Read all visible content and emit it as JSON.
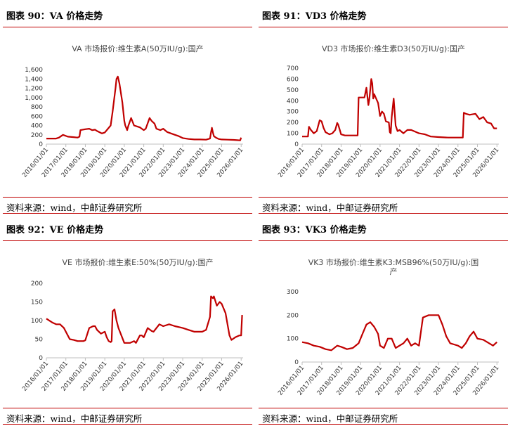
{
  "panels": [
    {
      "figure_label": "图表 90：VA 价格走势",
      "source": "资料来源：wind，中邮证券研究所",
      "chart_data": {
        "type": "line",
        "title": "VA 市场报价:维生素A(50万IU/g):国产",
        "ylim": [
          0,
          1600
        ],
        "yticks": [
          "0",
          "200",
          "400",
          "600",
          "800",
          "1,000",
          "1,200",
          "1,400",
          "1,600"
        ],
        "yticks_values": [
          0,
          200,
          400,
          600,
          800,
          1000,
          1200,
          1400,
          1600
        ],
        "xticks": [
          "2016/01/01",
          "2017/01/01",
          "2018/01/01",
          "2019/01/01",
          "2020/01/01",
          "2021/01/01",
          "2022/01/01",
          "2023/01/01",
          "2024/01/01",
          "2025/01/01",
          "2026/01/01"
        ],
        "xlim": [
          2016.0,
          2026.1
        ],
        "series": [
          {
            "x": [
              2016.0,
              2016.5,
              2016.65,
              2016.85,
              2017.1,
              2017.4,
              2017.6,
              2017.7,
              2017.75,
              2018.0,
              2018.2,
              2018.35,
              2018.5,
              2018.6,
              2018.75,
              2018.85,
              2019.0,
              2019.3,
              2019.4,
              2019.55,
              2019.6,
              2019.67,
              2019.75,
              2019.9,
              2020.0,
              2020.05,
              2020.15,
              2020.2,
              2020.3,
              2020.35,
              2020.5,
              2020.65,
              2020.8,
              2020.9,
              2021.0,
              2021.1,
              2021.3,
              2021.4,
              2021.55,
              2021.65,
              2021.85,
              2022.0,
              2022.2,
              2022.4,
              2022.6,
              2022.8,
              2023.0,
              2023.3,
              2023.6,
              2023.9,
              2024.2,
              2024.4,
              2024.45,
              2024.5,
              2024.55,
              2024.6,
              2024.7,
              2024.85,
              2025.0,
              2025.3,
              2025.6,
              2025.8,
              2025.95,
              2026.0
            ],
            "y": [
              120,
              120,
              140,
              200,
              160,
              150,
              140,
              160,
              300,
              320,
              330,
              300,
              310,
              280,
              250,
              230,
              250,
              400,
              700,
              1200,
              1400,
              1450,
              1300,
              900,
              500,
              400,
              300,
              380,
              500,
              560,
              400,
              380,
              360,
              330,
              300,
              330,
              560,
              500,
              440,
              330,
              300,
              330,
              260,
              230,
              200,
              170,
              130,
              110,
              100,
              100,
              95,
              120,
              250,
              350,
              250,
              170,
              140,
              110,
              100,
              95,
              90,
              85,
              80,
              140
            ]
          }
        ]
      }
    },
    {
      "figure_label": "图表 91：VD3 价格走势",
      "source": "资料来源：wind，中邮证券研究所",
      "chart_data": {
        "type": "line",
        "title": "VD3 市场报价:维生素D3(50万IU/g):国产",
        "ylim": [
          0,
          700
        ],
        "yticks": [
          "0",
          "100",
          "200",
          "300",
          "400",
          "500",
          "600",
          "700"
        ],
        "yticks_values": [
          0,
          100,
          200,
          300,
          400,
          500,
          600,
          700
        ],
        "xticks": [
          "2016/01/01",
          "2017/01/01",
          "2018/01/01",
          "2019/01/01",
          "2020/01/01",
          "2021/01/01",
          "2022/01/01",
          "2023/01/01",
          "2024/01/01",
          "2025/01/01",
          "2026/01/01"
        ],
        "xlim": [
          2016.0,
          2026.1
        ],
        "series": [
          {
            "x": [
              2016.0,
              2016.3,
              2016.35,
              2016.45,
              2016.6,
              2016.75,
              2016.9,
              2017.0,
              2017.1,
              2017.2,
              2017.4,
              2017.55,
              2017.7,
              2017.8,
              2017.85,
              2017.95,
              2018.0,
              2018.2,
              2018.4,
              2018.6,
              2018.85,
              2018.9,
              2019.0,
              2019.2,
              2019.3,
              2019.4,
              2019.45,
              2019.55,
              2019.6,
              2019.65,
              2019.7,
              2019.8,
              2019.9,
              2020.0,
              2020.1,
              2020.2,
              2020.3,
              2020.45,
              2020.5,
              2020.55,
              2020.6,
              2020.7,
              2020.8,
              2020.9,
              2021.0,
              2021.2,
              2021.4,
              2021.6,
              2021.8,
              2022.0,
              2022.3,
              2022.6,
              2023.0,
              2023.5,
              2024.0,
              2024.25,
              2024.3,
              2024.4,
              2024.6,
              2024.9,
              2025.1,
              2025.3,
              2025.5,
              2025.7,
              2025.85,
              2026.0
            ],
            "y": [
              70,
              70,
              160,
              130,
              100,
              120,
              220,
              210,
              150,
              110,
              90,
              100,
              130,
              195,
              180,
              120,
              90,
              80,
              80,
              80,
              80,
              430,
              430,
              430,
              520,
              360,
              410,
              600,
              560,
              420,
              460,
              420,
              380,
              260,
              300,
              280,
              210,
              200,
              110,
              100,
              250,
              420,
              170,
              120,
              130,
              100,
              130,
              130,
              115,
              100,
              90,
              70,
              65,
              60,
              60,
              60,
              290,
              280,
              270,
              280,
              230,
              250,
              200,
              190,
              145,
              145
            ]
          }
        ]
      }
    },
    {
      "figure_label": "图表 92：VE 价格走势",
      "source": "资料来源：wind，中邮证券研究所",
      "chart_data": {
        "type": "line",
        "title": "VE 市场报价:维生素E:50%(50万IU/g):国产",
        "ylim": [
          0,
          200
        ],
        "yticks": [
          "0",
          "50",
          "100",
          "150",
          "200"
        ],
        "yticks_values": [
          0,
          50,
          100,
          150,
          200
        ],
        "xticks": [
          "2016/01/01",
          "2017/01/01",
          "2018/01/01",
          "2019/01/01",
          "2020/01/01",
          "2021/01/01",
          "2022/01/01",
          "2023/01/01",
          "2024/01/01",
          "2025/01/01",
          "2026/01/01"
        ],
        "xlim": [
          2016.0,
          2026.1
        ],
        "series": [
          {
            "x": [
              2016.0,
              2016.3,
              2016.5,
              2016.7,
              2016.9,
              2017.0,
              2017.2,
              2017.4,
              2017.6,
              2017.8,
              2017.9,
              2018.0,
              2018.2,
              2018.4,
              2018.5,
              2018.6,
              2018.8,
              2019.0,
              2019.1,
              2019.2,
              2019.3,
              2019.35,
              2019.4,
              2019.5,
              2019.6,
              2019.7,
              2020.0,
              2020.3,
              2020.5,
              2020.6,
              2020.8,
              2020.9,
              2021.0,
              2021.2,
              2021.4,
              2021.5,
              2021.8,
              2022.0,
              2022.3,
              2022.6,
              2023.0,
              2023.3,
              2023.6,
              2024.0,
              2024.2,
              2024.4,
              2024.45,
              2024.55,
              2024.6,
              2024.75,
              2024.9,
              2025.0,
              2025.2,
              2025.4,
              2025.5,
              2025.7,
              2025.9,
              2026.0,
              2026.05
            ],
            "y": [
              105,
              95,
              90,
              90,
              80,
              70,
              50,
              48,
              45,
              45,
              45,
              47,
              80,
              85,
              85,
              75,
              65,
              70,
              55,
              45,
              42,
              45,
              125,
              130,
              100,
              80,
              40,
              40,
              45,
              40,
              60,
              60,
              55,
              80,
              72,
              70,
              90,
              85,
              90,
              85,
              80,
              75,
              70,
              70,
              75,
              110,
              165,
              160,
              165,
              140,
              150,
              145,
              120,
              60,
              48,
              55,
              60,
              60,
              115
            ]
          }
        ]
      }
    },
    {
      "figure_label": "图表 93：VK3 价格走势",
      "source": "资料来源：wind，中邮证券研究所",
      "chart_data": {
        "type": "line",
        "title": "VK3 市场报价:维生素K3:MSB96%(50万IU/g):国产",
        "ylim": [
          0,
          300
        ],
        "yticks": [
          "0",
          "100",
          "200",
          "300"
        ],
        "yticks_values": [
          0,
          100,
          200,
          300
        ],
        "xticks": [
          "2016/01/01",
          "2017/01/01",
          "2018/01/01",
          "2019/01/01",
          "2020/01/01",
          "2021/01/01",
          "2022/01/01",
          "2023/01/01",
          "2024/01/01",
          "2025/01/01",
          "2026/01/01"
        ],
        "xlim": [
          2016.0,
          2026.1
        ],
        "series": [
          {
            "x": [
              2016.0,
              2016.3,
              2016.6,
              2016.9,
              2017.2,
              2017.5,
              2017.8,
              2018.0,
              2018.3,
              2018.6,
              2018.9,
              2019.1,
              2019.3,
              2019.5,
              2019.7,
              2019.9,
              2020.0,
              2020.2,
              2020.4,
              2020.6,
              2020.8,
              2021.0,
              2021.2,
              2021.4,
              2021.6,
              2021.8,
              2022.0,
              2022.2,
              2022.5,
              2022.8,
              2023.0,
              2023.2,
              2023.4,
              2023.6,
              2023.8,
              2024.0,
              2024.2,
              2024.4,
              2024.6,
              2024.8,
              2025.0,
              2025.3,
              2025.6,
              2025.8,
              2026.0
            ],
            "y": [
              85,
              80,
              70,
              65,
              55,
              50,
              70,
              65,
              55,
              60,
              80,
              120,
              160,
              170,
              150,
              120,
              70,
              60,
              100,
              100,
              60,
              70,
              80,
              100,
              70,
              80,
              70,
              190,
              200,
              200,
              200,
              160,
              110,
              80,
              75,
              70,
              60,
              80,
              110,
              130,
              100,
              95,
              80,
              70,
              85
            ]
          }
        ]
      }
    }
  ]
}
